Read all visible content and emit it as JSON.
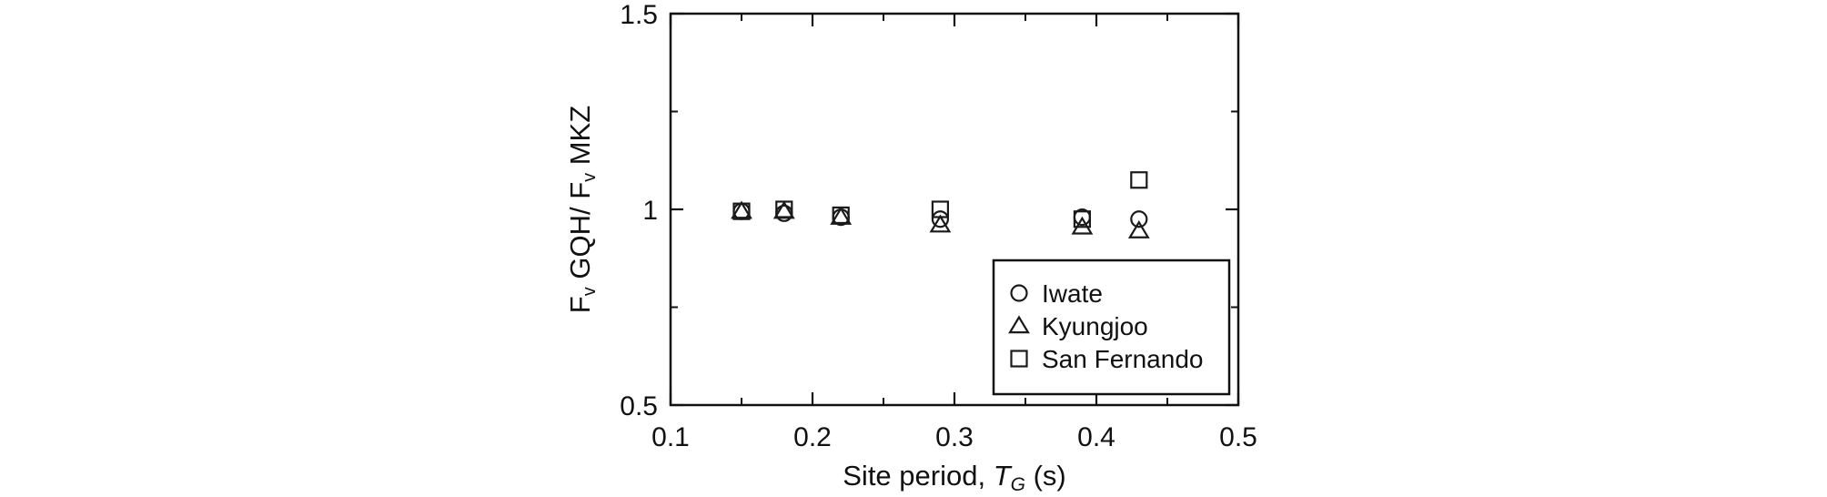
{
  "chart_data": {
    "type": "scatter",
    "xlabel": {
      "prefix": "Site period, ",
      "symbol": "T",
      "subscript": "G",
      "suffix": " (s)"
    },
    "ylabel": {
      "part1": "F",
      "sub1": "v",
      "part2": " GQH/ F",
      "sub2": "v",
      "part3": " MKZ"
    },
    "xlim": [
      0.1,
      0.5
    ],
    "ylim": [
      0.5,
      1.5
    ],
    "x_ticks": [
      0.1,
      0.2,
      0.3,
      0.4,
      0.5
    ],
    "x_tick_labels": [
      "0.1",
      "0.2",
      "0.3",
      "0.4",
      "0.5"
    ],
    "y_ticks": [
      0.5,
      1.0,
      1.5
    ],
    "y_tick_labels": [
      "0.5",
      "1",
      "1.5"
    ],
    "grid": false,
    "legend_position": "bottom-right",
    "series": [
      {
        "name": "Iwate",
        "marker": "circle",
        "x": [
          0.15,
          0.18,
          0.22,
          0.29,
          0.39,
          0.43
        ],
        "y": [
          0.995,
          0.99,
          0.98,
          0.975,
          0.98,
          0.975
        ]
      },
      {
        "name": "Kyungjoo",
        "marker": "triangle",
        "x": [
          0.15,
          0.18,
          0.22,
          0.29,
          0.39,
          0.43
        ],
        "y": [
          0.995,
          0.995,
          0.98,
          0.96,
          0.955,
          0.945
        ]
      },
      {
        "name": "San Fernando",
        "marker": "square",
        "x": [
          0.15,
          0.18,
          0.22,
          0.29,
          0.39,
          0.43
        ],
        "y": [
          0.995,
          1.0,
          0.985,
          1.0,
          0.975,
          1.075
        ]
      }
    ]
  }
}
